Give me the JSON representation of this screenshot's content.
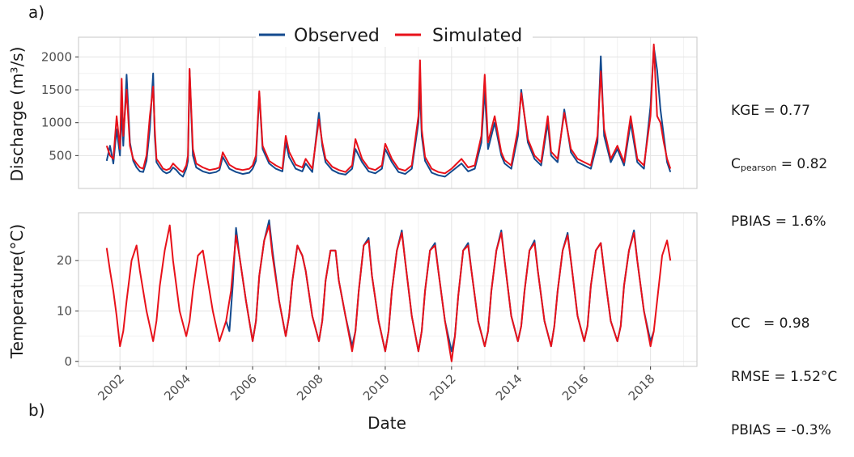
{
  "figure": {
    "panel_a_tag": "a)",
    "panel_b_tag": "b)",
    "xlabel": "Date"
  },
  "legend": {
    "observed": "Observed",
    "simulated": "Simulated"
  },
  "colors": {
    "observed": "#134a8e",
    "simulated": "#e8111a",
    "grid_major": "#e3e3e3",
    "grid_minor": "#f1f1f1",
    "panel_border": "#c7c7c7"
  },
  "stats_discharge": {
    "kge": "KGE = 0.77",
    "c_prefix": "C",
    "c_sub": "pearson",
    "c_suffix": " = 0.82",
    "pbias": "PBIAS = 1.6%"
  },
  "stats_temperature": {
    "cc": "CC   = 0.98",
    "rmse": "RMSE = 1.52°C",
    "pbias": "PBIAS = -0.3%"
  },
  "chart_data": [
    {
      "type": "line",
      "ylabel": "Discharge (m³/s)",
      "xlim": [
        2000.75,
        2019.4
      ],
      "ylim": [
        0,
        2300
      ],
      "yticks": [
        500,
        1000,
        1500,
        2000
      ],
      "xticks": [
        2002,
        2004,
        2006,
        2008,
        2010,
        2012,
        2014,
        2016,
        2018
      ],
      "grid": true,
      "series": [
        {
          "name": "Observed",
          "color": "#134a8e",
          "x": [
            2001.6,
            2001.7,
            2001.8,
            2001.9,
            2002.0,
            2002.05,
            2002.1,
            2002.2,
            2002.3,
            2002.4,
            2002.5,
            2002.6,
            2002.7,
            2002.8,
            2002.9,
            2003.0,
            2003.05,
            2003.1,
            2003.2,
            2003.3,
            2003.4,
            2003.5,
            2003.6,
            2003.7,
            2003.8,
            2003.9,
            2004.0,
            2004.05,
            2004.1,
            2004.2,
            2004.3,
            2004.5,
            2004.7,
            2004.9,
            2005.0,
            2005.1,
            2005.3,
            2005.5,
            2005.7,
            2005.9,
            2006.0,
            2006.1,
            2006.2,
            2006.3,
            2006.5,
            2006.7,
            2006.9,
            2007.0,
            2007.1,
            2007.3,
            2007.5,
            2007.6,
            2007.8,
            2008.0,
            2008.1,
            2008.2,
            2008.4,
            2008.6,
            2008.8,
            2009.0,
            2009.1,
            2009.3,
            2009.5,
            2009.7,
            2009.9,
            2010.0,
            2010.2,
            2010.4,
            2010.6,
            2010.8,
            2011.0,
            2011.05,
            2011.1,
            2011.2,
            2011.4,
            2011.6,
            2011.8,
            2012.0,
            2012.1,
            2012.3,
            2012.5,
            2012.7,
            2012.9,
            2013.0,
            2013.1,
            2013.3,
            2013.5,
            2013.6,
            2013.8,
            2014.0,
            2014.1,
            2014.3,
            2014.5,
            2014.7,
            2014.9,
            2015.0,
            2015.2,
            2015.4,
            2015.6,
            2015.8,
            2016.0,
            2016.2,
            2016.4,
            2016.5,
            2016.6,
            2016.8,
            2017.0,
            2017.2,
            2017.4,
            2017.6,
            2017.8,
            2018.0,
            2018.1,
            2018.2,
            2018.3,
            2018.4,
            2018.5,
            2018.6
          ],
          "y": [
            420,
            650,
            380,
            900,
            500,
            1200,
            650,
            1730,
            700,
            420,
            320,
            260,
            250,
            420,
            900,
            1750,
            800,
            400,
            320,
            260,
            230,
            250,
            320,
            280,
            220,
            180,
            300,
            420,
            1800,
            500,
            320,
            260,
            230,
            250,
            280,
            480,
            300,
            250,
            220,
            240,
            300,
            420,
            1450,
            600,
            380,
            300,
            260,
            700,
            480,
            300,
            260,
            380,
            250,
            1150,
            650,
            400,
            280,
            230,
            210,
            300,
            600,
            400,
            260,
            230,
            300,
            600,
            400,
            250,
            220,
            300,
            1000,
            1500,
            800,
            420,
            240,
            200,
            180,
            260,
            300,
            380,
            260,
            300,
            700,
            1500,
            600,
            1000,
            500,
            380,
            300,
            800,
            1500,
            700,
            450,
            350,
            1000,
            500,
            400,
            1200,
            550,
            400,
            350,
            300,
            700,
            2010,
            800,
            400,
            600,
            350,
            1000,
            400,
            300,
            1250,
            2150,
            1800,
            1200,
            800,
            400,
            250
          ]
        },
        {
          "name": "Simulated",
          "color": "#e8111a",
          "x": [
            2001.6,
            2001.7,
            2001.8,
            2001.9,
            2002.0,
            2002.05,
            2002.1,
            2002.2,
            2002.3,
            2002.4,
            2002.5,
            2002.6,
            2002.7,
            2002.8,
            2002.9,
            2003.0,
            2003.05,
            2003.1,
            2003.2,
            2003.3,
            2003.4,
            2003.5,
            2003.6,
            2003.7,
            2003.8,
            2003.9,
            2004.0,
            2004.05,
            2004.1,
            2004.2,
            2004.3,
            2004.5,
            2004.7,
            2004.9,
            2005.0,
            2005.1,
            2005.3,
            2005.5,
            2005.7,
            2005.9,
            2006.0,
            2006.1,
            2006.2,
            2006.3,
            2006.5,
            2006.7,
            2006.9,
            2007.0,
            2007.1,
            2007.3,
            2007.5,
            2007.6,
            2007.8,
            2008.0,
            2008.1,
            2008.2,
            2008.4,
            2008.6,
            2008.8,
            2009.0,
            2009.1,
            2009.3,
            2009.5,
            2009.7,
            2009.9,
            2010.0,
            2010.2,
            2010.4,
            2010.6,
            2010.8,
            2011.0,
            2011.05,
            2011.1,
            2011.2,
            2011.4,
            2011.6,
            2011.8,
            2012.0,
            2012.1,
            2012.3,
            2012.5,
            2012.7,
            2012.9,
            2013.0,
            2013.1,
            2013.3,
            2013.5,
            2013.6,
            2013.8,
            2014.0,
            2014.1,
            2014.3,
            2014.5,
            2014.7,
            2014.9,
            2015.0,
            2015.2,
            2015.4,
            2015.6,
            2015.8,
            2016.0,
            2016.2,
            2016.4,
            2016.5,
            2016.6,
            2016.8,
            2017.0,
            2017.2,
            2017.4,
            2017.6,
            2017.8,
            2018.0,
            2018.1,
            2018.2,
            2018.3,
            2018.4,
            2018.5,
            2018.6
          ],
          "y": [
            650,
            500,
            450,
            1100,
            600,
            1670,
            800,
            1500,
            650,
            450,
            380,
            320,
            300,
            500,
            1100,
            1550,
            900,
            450,
            380,
            300,
            280,
            300,
            380,
            330,
            280,
            250,
            350,
            500,
            1820,
            600,
            380,
            320,
            280,
            300,
            320,
            550,
            360,
            300,
            280,
            300,
            350,
            500,
            1480,
            650,
            420,
            350,
            300,
            800,
            560,
            360,
            320,
            450,
            300,
            1050,
            700,
            450,
            330,
            280,
            250,
            350,
            750,
            450,
            310,
            280,
            350,
            680,
            450,
            300,
            270,
            350,
            1100,
            1950,
            900,
            480,
            300,
            250,
            230,
            300,
            350,
            450,
            320,
            350,
            800,
            1730,
            700,
            1100,
            550,
            430,
            350,
            900,
            1450,
            750,
            500,
            400,
            1100,
            560,
            450,
            1150,
            600,
            450,
            400,
            350,
            800,
            1780,
            900,
            450,
            650,
            400,
            1100,
            450,
            350,
            1100,
            2190,
            1100,
            1000,
            700,
            450,
            300
          ]
        }
      ]
    },
    {
      "type": "line",
      "ylabel": "Temperature(°C)",
      "xlim": [
        2000.75,
        2019.4
      ],
      "ylim": [
        -1,
        29.5
      ],
      "yticks": [
        0,
        10,
        20
      ],
      "xticks": [
        2002,
        2004,
        2006,
        2008,
        2010,
        2012,
        2014,
        2016,
        2018
      ],
      "grid": true,
      "series": [
        {
          "name": "Observed",
          "color": "#134a8e",
          "x": [
            2005.2,
            2005.3,
            2005.4,
            2005.5,
            2005.6,
            2005.8,
            2006.0,
            2006.1,
            2006.2,
            2006.35,
            2006.5,
            2006.6,
            2006.8,
            2007.0,
            2007.1,
            2007.2,
            2007.35,
            2007.5,
            2007.6,
            2007.8,
            2008.0,
            2008.1,
            2008.2,
            2008.35,
            2008.5,
            2008.6,
            2008.8,
            2009.0,
            2009.1,
            2009.2,
            2009.35,
            2009.5,
            2009.6,
            2009.8,
            2010.0,
            2010.1,
            2010.2,
            2010.35,
            2010.5,
            2010.6,
            2010.8,
            2011.0,
            2011.1,
            2011.2,
            2011.35,
            2011.5,
            2011.6,
            2011.8,
            2012.0,
            2012.1,
            2012.2,
            2012.35,
            2012.5,
            2012.6,
            2012.8,
            2013.0,
            2013.1,
            2013.2,
            2013.35,
            2013.5,
            2013.6,
            2013.8,
            2014.0,
            2014.1,
            2014.2,
            2014.35,
            2014.5,
            2014.6,
            2014.8,
            2015.0,
            2015.1,
            2015.2,
            2015.35,
            2015.5,
            2015.6,
            2015.8,
            2016.0,
            2016.1,
            2016.2,
            2016.35,
            2016.5,
            2016.6,
            2016.8,
            2017.0,
            2017.1,
            2017.2,
            2017.35,
            2017.5,
            2017.6,
            2017.8,
            2018.0,
            2018.1
          ],
          "y": [
            8,
            6,
            15,
            26.5,
            21,
            12,
            4,
            8,
            17,
            24,
            28,
            22,
            12,
            5,
            9,
            16,
            23,
            21,
            18,
            9,
            4,
            8,
            16,
            22,
            22,
            16,
            9,
            3,
            6,
            14,
            23,
            24.5,
            17,
            8,
            2,
            6,
            14,
            22,
            26,
            20,
            9,
            2,
            6,
            14,
            22,
            23.5,
            18,
            8,
            2,
            5,
            13,
            22,
            23.5,
            18,
            8,
            3,
            6,
            14,
            22,
            26,
            20,
            9,
            4,
            7,
            14,
            22,
            24,
            18,
            8,
            3,
            7,
            14,
            22,
            25.5,
            20,
            9,
            4,
            7,
            15,
            22,
            23.5,
            18,
            8,
            4,
            7,
            15,
            22,
            26,
            20,
            10,
            4,
            6
          ]
        },
        {
          "name": "Simulated",
          "color": "#e8111a",
          "x": [
            2001.6,
            2001.7,
            2001.8,
            2001.9,
            2002.0,
            2002.1,
            2002.2,
            2002.35,
            2002.5,
            2002.6,
            2002.8,
            2003.0,
            2003.1,
            2003.2,
            2003.35,
            2003.5,
            2003.6,
            2003.8,
            2004.0,
            2004.1,
            2004.2,
            2004.35,
            2004.5,
            2004.6,
            2004.8,
            2005.0,
            2005.1,
            2005.2,
            2005.35,
            2005.5,
            2005.6,
            2005.8,
            2006.0,
            2006.1,
            2006.2,
            2006.35,
            2006.5,
            2006.6,
            2006.8,
            2007.0,
            2007.1,
            2007.2,
            2007.35,
            2007.5,
            2007.6,
            2007.8,
            2008.0,
            2008.1,
            2008.2,
            2008.35,
            2008.5,
            2008.6,
            2008.8,
            2009.0,
            2009.1,
            2009.2,
            2009.35,
            2009.5,
            2009.6,
            2009.8,
            2010.0,
            2010.1,
            2010.2,
            2010.35,
            2010.5,
            2010.6,
            2010.8,
            2011.0,
            2011.1,
            2011.2,
            2011.35,
            2011.5,
            2011.6,
            2011.8,
            2012.0,
            2012.1,
            2012.2,
            2012.35,
            2012.5,
            2012.6,
            2012.8,
            2013.0,
            2013.1,
            2013.2,
            2013.35,
            2013.5,
            2013.6,
            2013.8,
            2014.0,
            2014.1,
            2014.2,
            2014.35,
            2014.5,
            2014.6,
            2014.8,
            2015.0,
            2015.1,
            2015.2,
            2015.35,
            2015.5,
            2015.6,
            2015.8,
            2016.0,
            2016.1,
            2016.2,
            2016.35,
            2016.5,
            2016.6,
            2016.8,
            2017.0,
            2017.1,
            2017.2,
            2017.35,
            2017.5,
            2017.6,
            2017.8,
            2018.0,
            2018.1,
            2018.2,
            2018.35,
            2018.5,
            2018.6
          ],
          "y": [
            22.5,
            18,
            14,
            9,
            3,
            6,
            12,
            20,
            23,
            18,
            10,
            4,
            8,
            15,
            22,
            27,
            20,
            10,
            5,
            8,
            14,
            21,
            22,
            18,
            10,
            4,
            6,
            8,
            14,
            25,
            21,
            12,
            4,
            8,
            17,
            24,
            27,
            21,
            12,
            5,
            9,
            16,
            23,
            21,
            18,
            9,
            4,
            8,
            16,
            22,
            22,
            16,
            9,
            2,
            6,
            14,
            23,
            24,
            17,
            8,
            2,
            6,
            14,
            22,
            25.5,
            20,
            9,
            2,
            6,
            14,
            22,
            23,
            18,
            8,
            0,
            5,
            13,
            22,
            23,
            18,
            8,
            3,
            6,
            14,
            22,
            25.5,
            20,
            9,
            4,
            7,
            14,
            22,
            23.5,
            18,
            8,
            3,
            7,
            14,
            22,
            25,
            20,
            9,
            4,
            7,
            15,
            22,
            23.5,
            18,
            8,
            4,
            7,
            15,
            22,
            25.5,
            20,
            10,
            3,
            6,
            12,
            21,
            24,
            20
          ]
        }
      ]
    }
  ]
}
